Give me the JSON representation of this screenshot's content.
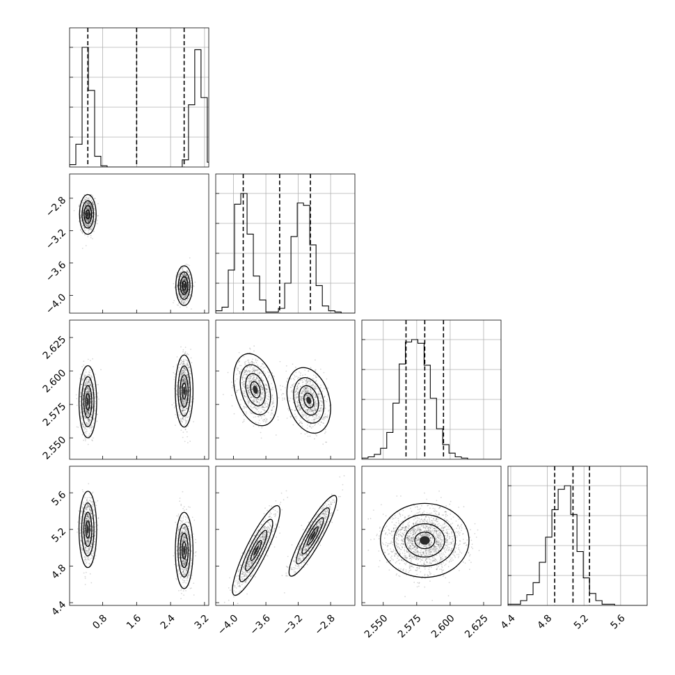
{
  "chart_data": {
    "type": "corner",
    "params": [
      {
        "ticks": [
          0.8,
          1.6,
          2.4,
          3.2
        ],
        "tick_labels": [
          "0.8",
          "1.6",
          "2.4",
          "3.2"
        ],
        "lim": [
          0.02,
          3.3
        ]
      },
      {
        "ticks": [
          -4.0,
          -3.6,
          -3.2,
          -2.8
        ],
        "tick_labels": [
          "−4.0",
          "−3.6",
          "−3.2",
          "−2.8"
        ],
        "lim": [
          -4.22,
          -2.5
        ]
      },
      {
        "ticks": [
          2.55,
          2.575,
          2.6,
          2.625
        ],
        "tick_labels": [
          "2.550",
          "2.575",
          "2.600",
          "2.625"
        ],
        "lim": [
          2.534,
          2.638
        ]
      },
      {
        "ticks": [
          4.4,
          4.8,
          5.2,
          5.6
        ],
        "tick_labels": [
          "4.4",
          "4.8",
          "5.2",
          "5.6"
        ],
        "lim": [
          4.37,
          5.89
        ]
      }
    ],
    "diagonal": [
      {
        "bin_edges_start": 0.02,
        "bin_width": 0.1475,
        "counts": [
          0.02,
          0.19,
          1.0,
          0.64,
          0.09,
          0.01,
          0,
          0,
          0,
          0,
          0,
          0,
          0,
          0,
          0,
          0,
          0,
          0,
          0.06,
          0.52,
          0.98,
          0.58,
          0.04,
          0.01
        ],
        "quantiles": [
          0.45,
          1.6,
          2.72
        ]
      },
      {
        "bin_edges_start": -4.22,
        "bin_width": 0.0775,
        "counts": [
          0.02,
          0.05,
          0.36,
          0.91,
          1.0,
          0.66,
          0.31,
          0.11,
          0.01,
          0.01,
          0.04,
          0.25,
          0.64,
          0.92,
          0.9,
          0.57,
          0.23,
          0.06,
          0.02,
          0.01,
          0,
          0,
          0
        ],
        "quantiles": [
          -3.88,
          -3.43,
          -3.05
        ]
      },
      {
        "bin_edges_start": 2.534,
        "bin_width": 0.00465,
        "counts": [
          0.01,
          0.02,
          0.04,
          0.09,
          0.22,
          0.46,
          0.78,
          0.96,
          0.98,
          0.95,
          0.77,
          0.5,
          0.25,
          0.12,
          0.05,
          0.02,
          0.01,
          0,
          0,
          0,
          0,
          0
        ],
        "quantiles": [
          2.567,
          2.581,
          2.595
        ]
      },
      {
        "bin_edges_start": 4.37,
        "bin_width": 0.0685,
        "counts": [
          0.01,
          0.01,
          0.04,
          0.09,
          0.19,
          0.36,
          0.57,
          0.8,
          0.97,
          1.0,
          0.76,
          0.45,
          0.23,
          0.1,
          0.04,
          0.01,
          0.01,
          0,
          0,
          0,
          0,
          0
        ],
        "quantiles": [
          4.88,
          5.08,
          5.26
        ]
      }
    ],
    "pairs": [
      {
        "row": 1,
        "col": 0,
        "modes": [
          {
            "mx": 0.45,
            "my": -3.0,
            "sx": 0.08,
            "sy": 0.1,
            "rho": 0,
            "w": 0.5
          },
          {
            "mx": 2.72,
            "my": -3.88,
            "sx": 0.08,
            "sy": 0.1,
            "rho": 0,
            "w": 0.5
          }
        ]
      },
      {
        "row": 2,
        "col": 0,
        "modes": [
          {
            "mx": 0.45,
            "my": 2.577,
            "sx": 0.085,
            "sy": 0.011,
            "rho": 0,
            "w": 0.5
          },
          {
            "mx": 2.72,
            "my": 2.585,
            "sx": 0.085,
            "sy": 0.011,
            "rho": 0,
            "w": 0.5
          }
        ]
      },
      {
        "row": 3,
        "col": 0,
        "modes": [
          {
            "mx": 0.45,
            "my": 5.2,
            "sx": 0.085,
            "sy": 0.17,
            "rho": 0,
            "w": 0.5
          },
          {
            "mx": 2.72,
            "my": 4.97,
            "sx": 0.085,
            "sy": 0.17,
            "rho": 0,
            "w": 0.5
          }
        ]
      },
      {
        "row": 2,
        "col": 1,
        "modes": [
          {
            "mx": -3.73,
            "my": 2.586,
            "sx": 0.11,
            "sy": 0.011,
            "rho": -0.3,
            "w": 0.5
          },
          {
            "mx": -3.07,
            "my": 2.578,
            "sx": 0.11,
            "sy": 0.01,
            "rho": -0.25,
            "w": 0.5
          }
        ]
      },
      {
        "row": 3,
        "col": 1,
        "modes": [
          {
            "mx": -3.72,
            "my": 4.97,
            "sx": 0.12,
            "sy": 0.2,
            "rho": 0.88,
            "w": 0.5
          },
          {
            "mx": -3.02,
            "my": 5.13,
            "sx": 0.12,
            "sy": 0.18,
            "rho": 0.9,
            "w": 0.5
          }
        ]
      },
      {
        "row": 3,
        "col": 2,
        "modes": [
          {
            "mx": 2.581,
            "my": 5.08,
            "sx": 0.0135,
            "sy": 0.165,
            "rho": 0,
            "w": 1
          }
        ]
      }
    ],
    "xlabel": "",
    "ylabel": ""
  }
}
